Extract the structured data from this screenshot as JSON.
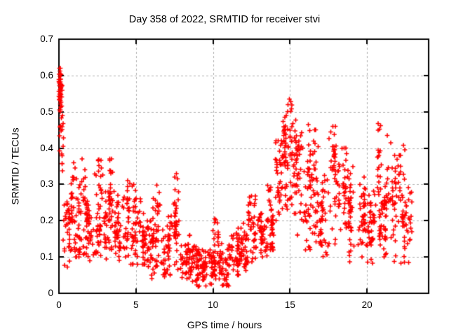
{
  "chart_data": {
    "type": "scatter",
    "title": "Day 358 of 2022, SRMTID for receiver stvi",
    "xlabel": "GPS time / hours",
    "ylabel": "SRMTID / TECUs",
    "xlim": [
      0,
      24
    ],
    "ylim": [
      0,
      0.7
    ],
    "x_ticks": [
      {
        "v": 0,
        "label": "0"
      },
      {
        "v": 5,
        "label": "5"
      },
      {
        "v": 10,
        "label": "10"
      },
      {
        "v": 15,
        "label": "15"
      },
      {
        "v": 20,
        "label": "20"
      }
    ],
    "y_ticks": [
      {
        "v": 0,
        "label": "0"
      },
      {
        "v": 0.1,
        "label": "0.1"
      },
      {
        "v": 0.2,
        "label": "0.2"
      },
      {
        "v": 0.3,
        "label": "0.3"
      },
      {
        "v": 0.4,
        "label": "0.4"
      },
      {
        "v": 0.5,
        "label": "0.5"
      },
      {
        "v": 0.6,
        "label": "0.6"
      },
      {
        "v": 0.7,
        "label": "0.7"
      }
    ],
    "grid": true,
    "legend": "none",
    "marker": "plus",
    "colors": {
      "marker": "#ff0000",
      "grid": "#b0b0b0",
      "axis": "#000000",
      "background": "#ffffff",
      "text": "#000000"
    },
    "seed": 3582022,
    "data_description": "Dense scatter of ~1800 red '+' points. High streak 0.5-0.62 TECU at hour 0, band 0.1-0.3 with spikes (hours 1-8), quiet minimum 0.02-0.13 (hours 8-11), rise after hour 12, main peak up to 0.53 near hour 15, secondary activity 0.1-0.47 until data ends near hour 22.9.",
    "envelope": [
      [
        0.0,
        0.2,
        0.5,
        0.62,
        30
      ],
      [
        0.02,
        0.3,
        0.28,
        0.5,
        16
      ],
      [
        0.2,
        0.8,
        0.07,
        0.26,
        36
      ],
      [
        0.8,
        1.3,
        0.1,
        0.32,
        40
      ],
      [
        1.3,
        1.8,
        0.1,
        0.34,
        40
      ],
      [
        1.8,
        2.3,
        0.08,
        0.26,
        40
      ],
      [
        2.3,
        2.9,
        0.1,
        0.37,
        46
      ],
      [
        2.9,
        3.3,
        0.09,
        0.28,
        36
      ],
      [
        3.3,
        3.65,
        0.12,
        0.37,
        30
      ],
      [
        3.65,
        4.1,
        0.09,
        0.27,
        38
      ],
      [
        4.1,
        4.6,
        0.1,
        0.31,
        36
      ],
      [
        4.6,
        5.1,
        0.08,
        0.3,
        38
      ],
      [
        5.1,
        5.6,
        0.08,
        0.26,
        36
      ],
      [
        5.6,
        6.1,
        0.04,
        0.2,
        36
      ],
      [
        6.1,
        6.6,
        0.05,
        0.3,
        36
      ],
      [
        6.6,
        7.2,
        0.04,
        0.22,
        40
      ],
      [
        7.2,
        7.9,
        0.04,
        0.33,
        44
      ],
      [
        7.9,
        8.6,
        0.03,
        0.16,
        46
      ],
      [
        8.6,
        9.3,
        0.02,
        0.13,
        50
      ],
      [
        9.3,
        10.0,
        0.02,
        0.12,
        50
      ],
      [
        10.0,
        10.4,
        0.04,
        0.21,
        32
      ],
      [
        10.4,
        11.1,
        0.02,
        0.14,
        46
      ],
      [
        11.1,
        11.7,
        0.05,
        0.18,
        40
      ],
      [
        11.7,
        12.3,
        0.06,
        0.2,
        42
      ],
      [
        12.3,
        12.9,
        0.08,
        0.27,
        42
      ],
      [
        12.9,
        13.5,
        0.1,
        0.22,
        42
      ],
      [
        13.5,
        14.0,
        0.12,
        0.3,
        38
      ],
      [
        14.0,
        14.5,
        0.14,
        0.42,
        40
      ],
      [
        14.5,
        15.0,
        0.18,
        0.5,
        44
      ],
      [
        15.0,
        15.4,
        0.22,
        0.53,
        36
      ],
      [
        15.4,
        15.9,
        0.16,
        0.45,
        38
      ],
      [
        15.9,
        16.4,
        0.12,
        0.42,
        38
      ],
      [
        16.4,
        16.9,
        0.1,
        0.45,
        38
      ],
      [
        16.9,
        17.5,
        0.1,
        0.33,
        40
      ],
      [
        17.5,
        18.0,
        0.12,
        0.46,
        38
      ],
      [
        18.0,
        18.7,
        0.1,
        0.4,
        42
      ],
      [
        18.7,
        19.3,
        0.08,
        0.35,
        40
      ],
      [
        19.3,
        19.9,
        0.1,
        0.32,
        40
      ],
      [
        19.9,
        20.5,
        0.08,
        0.3,
        40
      ],
      [
        20.5,
        21.0,
        0.1,
        0.47,
        38
      ],
      [
        21.0,
        21.6,
        0.1,
        0.42,
        40
      ],
      [
        21.6,
        22.2,
        0.08,
        0.38,
        42
      ],
      [
        22.2,
        22.9,
        0.08,
        0.33,
        46
      ]
    ],
    "outliers": [
      [
        0.04,
        0.62
      ],
      [
        0.07,
        0.612
      ],
      [
        0.1,
        0.605
      ],
      [
        0.06,
        0.598
      ],
      [
        0.12,
        0.59
      ],
      [
        0.08,
        0.582
      ],
      [
        0.05,
        0.573
      ],
      [
        0.11,
        0.565
      ],
      [
        0.09,
        0.556
      ],
      [
        0.13,
        0.548
      ],
      [
        0.06,
        0.54
      ],
      [
        0.1,
        0.531
      ],
      [
        0.08,
        0.522
      ],
      [
        0.12,
        0.513
      ],
      [
        0.05,
        0.505
      ],
      [
        0.28,
        0.468
      ],
      [
        0.3,
        0.428
      ],
      [
        0.27,
        0.405
      ],
      [
        0.55,
        0.072
      ],
      [
        0.95,
        0.36
      ],
      [
        1.05,
        0.345
      ],
      [
        1.5,
        0.37
      ],
      [
        2.55,
        0.365
      ],
      [
        2.6,
        0.352
      ],
      [
        3.42,
        0.37
      ],
      [
        4.85,
        0.3
      ],
      [
        6.35,
        0.298
      ],
      [
        7.62,
        0.33
      ],
      [
        7.7,
        0.315
      ],
      [
        9.05,
        0.018
      ],
      [
        9.55,
        0.02
      ],
      [
        9.9,
        0.025
      ],
      [
        10.6,
        0.022
      ],
      [
        10.1,
        0.205
      ],
      [
        12.75,
        0.268
      ],
      [
        14.88,
        0.52
      ],
      [
        14.95,
        0.535
      ],
      [
        15.05,
        0.528
      ],
      [
        15.1,
        0.508
      ],
      [
        16.18,
        0.465
      ],
      [
        16.28,
        0.448
      ],
      [
        17.78,
        0.46
      ],
      [
        17.88,
        0.438
      ],
      [
        20.72,
        0.468
      ],
      [
        20.82,
        0.452
      ],
      [
        21.32,
        0.435
      ],
      [
        21.55,
        0.415
      ],
      [
        22.35,
        0.408
      ],
      [
        22.45,
        0.395
      ]
    ]
  }
}
